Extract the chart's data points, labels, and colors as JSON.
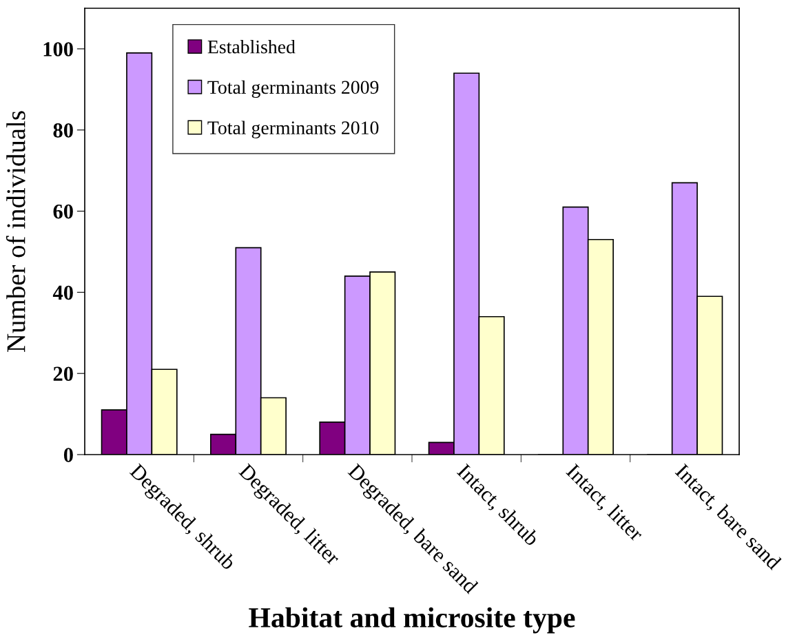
{
  "chart_data": {
    "type": "bar",
    "xlabel": "Habitat and microsite type",
    "ylabel": "Number of individuals",
    "categories": [
      "Degraded, shrub",
      "Degraded, litter",
      "Degraded, bare sand",
      "Intact, shrub",
      "Intact, litter",
      "Intact, bare sand"
    ],
    "series": [
      {
        "name": "Established",
        "color": "#800080",
        "values": [
          11,
          5,
          8,
          3,
          0,
          0
        ]
      },
      {
        "name": "Total germinants 2009",
        "color": "#cc99ff",
        "values": [
          99,
          51,
          44,
          94,
          61,
          67
        ]
      },
      {
        "name": "Total germinants 2010",
        "color": "#ffffcc",
        "values": [
          21,
          14,
          45,
          34,
          53,
          39
        ]
      }
    ],
    "ylim": [
      0,
      110
    ],
    "yticks": [
      0,
      20,
      40,
      60,
      80,
      100
    ],
    "grid": false,
    "legend": "top left"
  }
}
